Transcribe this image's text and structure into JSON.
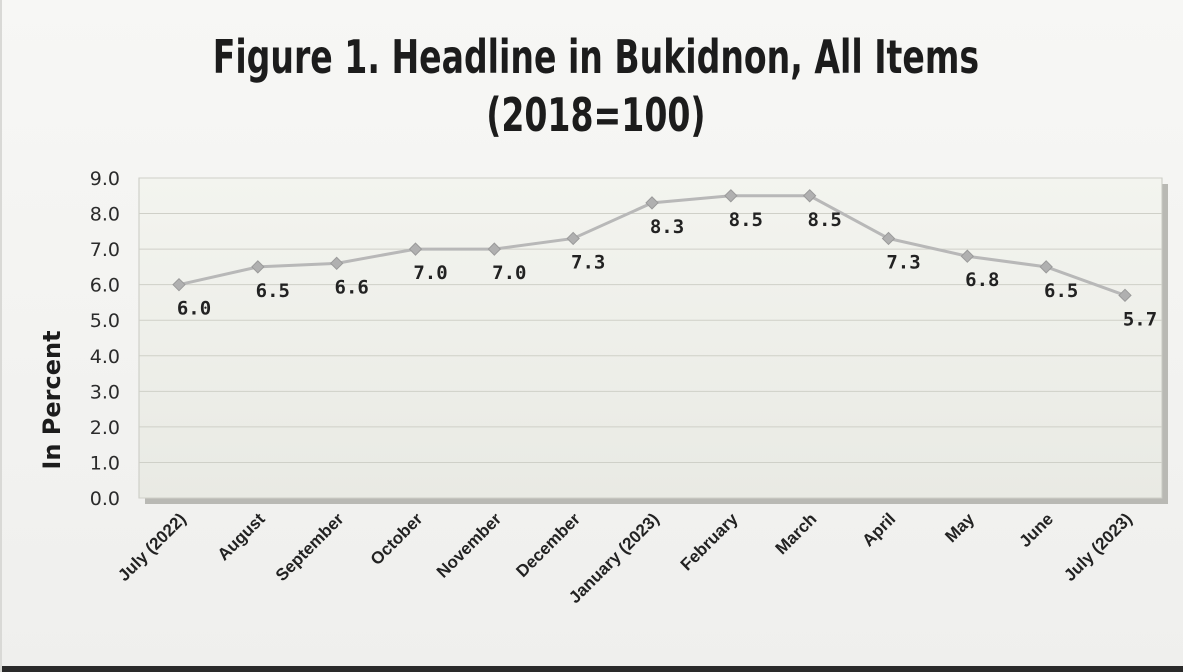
{
  "chart_data": {
    "type": "line",
    "title": "Figure 1. Headline in Bukidnon, All Items",
    "subtitle": "(2018=100)",
    "xlabel": "",
    "ylabel": "In Percent",
    "ylim": [
      0,
      9
    ],
    "yticks": [
      "0.0",
      "1.0",
      "2.0",
      "3.0",
      "4.0",
      "5.0",
      "6.0",
      "7.0",
      "8.0",
      "9.0"
    ],
    "grid": true,
    "legend": "none",
    "categories": [
      "July (2022)",
      "August",
      "September",
      "October",
      "November",
      "December",
      "January (2023)",
      "February",
      "March",
      "April",
      "May",
      "June",
      "July (2023)"
    ],
    "series": [
      {
        "values": [
          6.0,
          6.5,
          6.6,
          7.0,
          7.0,
          7.3,
          8.3,
          8.5,
          8.5,
          7.3,
          6.8,
          6.5,
          5.7
        ],
        "labels": [
          "6.0",
          "6.5",
          "6.6",
          "7.0",
          "7.0",
          "7.3",
          "8.3",
          "8.5",
          "8.5",
          "7.3",
          "6.8",
          "6.5",
          "5.7"
        ]
      }
    ],
    "colors": {
      "line": "#b8b8b8",
      "marker": "#b0b0b0",
      "plot_bg": "#f1f2ec",
      "grid": "#cfd0c8"
    }
  }
}
